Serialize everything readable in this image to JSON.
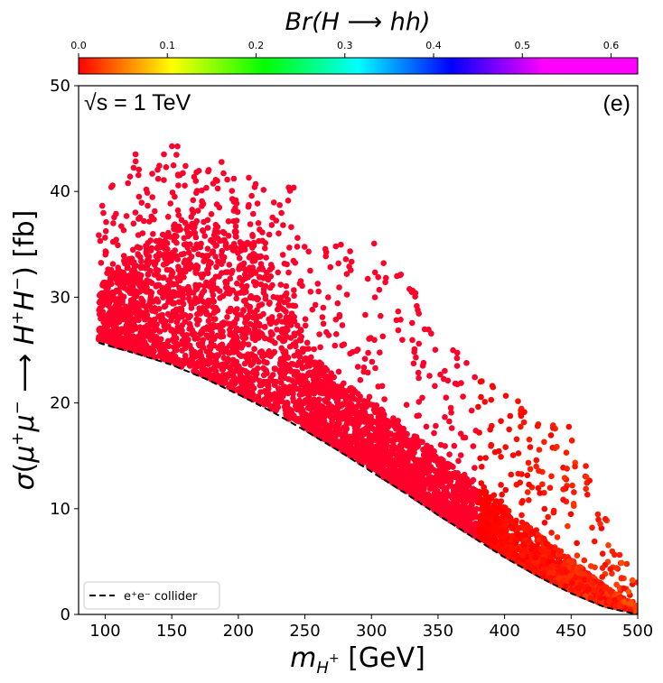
{
  "chart_data": {
    "type": "scatter",
    "title": "",
    "xlabel": "m_{H^+} [GeV]",
    "ylabel": "σ(μ⁺μ⁻ ⟶ H⁺H⁻) [fb]",
    "xlim": [
      80,
      500
    ],
    "ylim": [
      0,
      50
    ],
    "xticks": [
      100,
      150,
      200,
      250,
      300,
      350,
      400,
      450,
      500
    ],
    "yticks": [
      0,
      10,
      20,
      30,
      40,
      50
    ],
    "xtick_labels": [
      "100",
      "150",
      "200",
      "250",
      "300",
      "350",
      "400",
      "450",
      "500"
    ],
    "ytick_labels": [
      "0",
      "10",
      "20",
      "30",
      "40",
      "50"
    ],
    "colorbar": {
      "label": "Br(H ⟶ hh)",
      "range": [
        0.0,
        0.63
      ],
      "ticks": [
        0.0,
        0.1,
        0.2,
        0.3,
        0.4,
        0.5,
        0.6
      ],
      "tick_labels": [
        "0.0",
        "0.1",
        "0.2",
        "0.3",
        "0.4",
        "0.5",
        "0.6"
      ],
      "colormap": "hsv"
    },
    "annotations": {
      "energy": "√s = 1 TeV",
      "panel": "(e)"
    },
    "legend": {
      "placement": "lower-left",
      "entries": [
        "e⁺e⁻ collider"
      ]
    },
    "series": [
      {
        "name": "e⁺e⁻ collider",
        "style": "dashed",
        "x": [
          95,
          100,
          125,
          150,
          175,
          200,
          225,
          250,
          275,
          300,
          325,
          350,
          375,
          400,
          425,
          450,
          475,
          500
        ],
        "y": [
          25.7,
          25.5,
          24.6,
          23.6,
          22.3,
          20.8,
          19.2,
          17.4,
          15.5,
          13.5,
          11.5,
          9.4,
          7.4,
          5.4,
          3.6,
          2.0,
          0.7,
          0.0
        ]
      },
      {
        "name": "scan points",
        "style": "scatter",
        "band_lower": "e⁺e⁻ collider",
        "envelope_x": [
          95,
          100,
          125,
          150,
          175,
          200,
          225,
          240,
          250,
          275,
          300,
          325,
          350,
          375,
          400,
          425,
          450,
          475,
          500
        ],
        "dense_upper": [
          30.0,
          32.0,
          34.5,
          36.5,
          37.5,
          36.0,
          33.0,
          31.0,
          25.0,
          22.0,
          20.0,
          17.5,
          15.0,
          12.5,
          10.0,
          7.5,
          5.0,
          2.5,
          0.5
        ],
        "sparse_upper": [
          38.0,
          40.0,
          44.0,
          44.5,
          43.5,
          42.5,
          40.0,
          41.5,
          35.5,
          35.0,
          35.5,
          33.0,
          26.0,
          24.5,
          21.0,
          19.0,
          18.0,
          9.5,
          3.0
        ]
      }
    ]
  }
}
